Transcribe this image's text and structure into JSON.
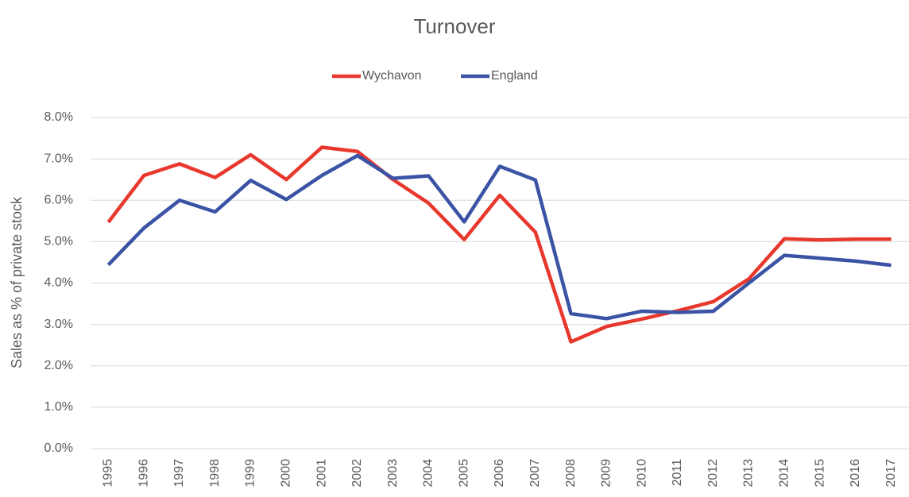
{
  "chart_data": {
    "type": "line",
    "title": "Turnover",
    "y_label": "Sales as % of private stock",
    "categories": [
      "1995",
      "1996",
      "1997",
      "1998",
      "1999",
      "2000",
      "2001",
      "2002",
      "2003",
      "2004",
      "2005",
      "2006",
      "2007",
      "2008",
      "2009",
      "2010",
      "2011",
      "2012",
      "2013",
      "2014",
      "2015",
      "2016",
      "2017"
    ],
    "series": [
      {
        "name": "Wychavon",
        "color": "#e8382d",
        "values": [
          5.47,
          6.6,
          6.88,
          6.55,
          7.1,
          6.5,
          7.28,
          7.18,
          6.5,
          5.93,
          5.05,
          6.12,
          5.23,
          2.58,
          2.95,
          3.13,
          3.33,
          3.55,
          4.1,
          5.07,
          5.04,
          5.06,
          5.06
        ]
      },
      {
        "name": "England",
        "color": "#3a53a4",
        "values": [
          4.44,
          5.33,
          6.0,
          5.72,
          6.48,
          6.02,
          6.6,
          7.08,
          6.53,
          6.59,
          5.48,
          6.82,
          6.49,
          3.26,
          3.14,
          3.32,
          3.29,
          3.32,
          4.0,
          4.67,
          4.6,
          4.53,
          4.43
        ]
      }
    ],
    "ylim": [
      0,
      8
    ],
    "yticks": [
      {
        "value": 0,
        "label": "0.0%"
      },
      {
        "value": 1,
        "label": "1.0%"
      },
      {
        "value": 2,
        "label": "2.0%"
      },
      {
        "value": 3,
        "label": "3.0%"
      },
      {
        "value": 4,
        "label": "4.0%"
      },
      {
        "value": 5,
        "label": "5.0%"
      },
      {
        "value": 6,
        "label": "6.0%"
      },
      {
        "value": 7,
        "label": "7.0%"
      },
      {
        "value": 8,
        "label": "8.0%"
      }
    ],
    "grid": true,
    "legend": "top"
  }
}
